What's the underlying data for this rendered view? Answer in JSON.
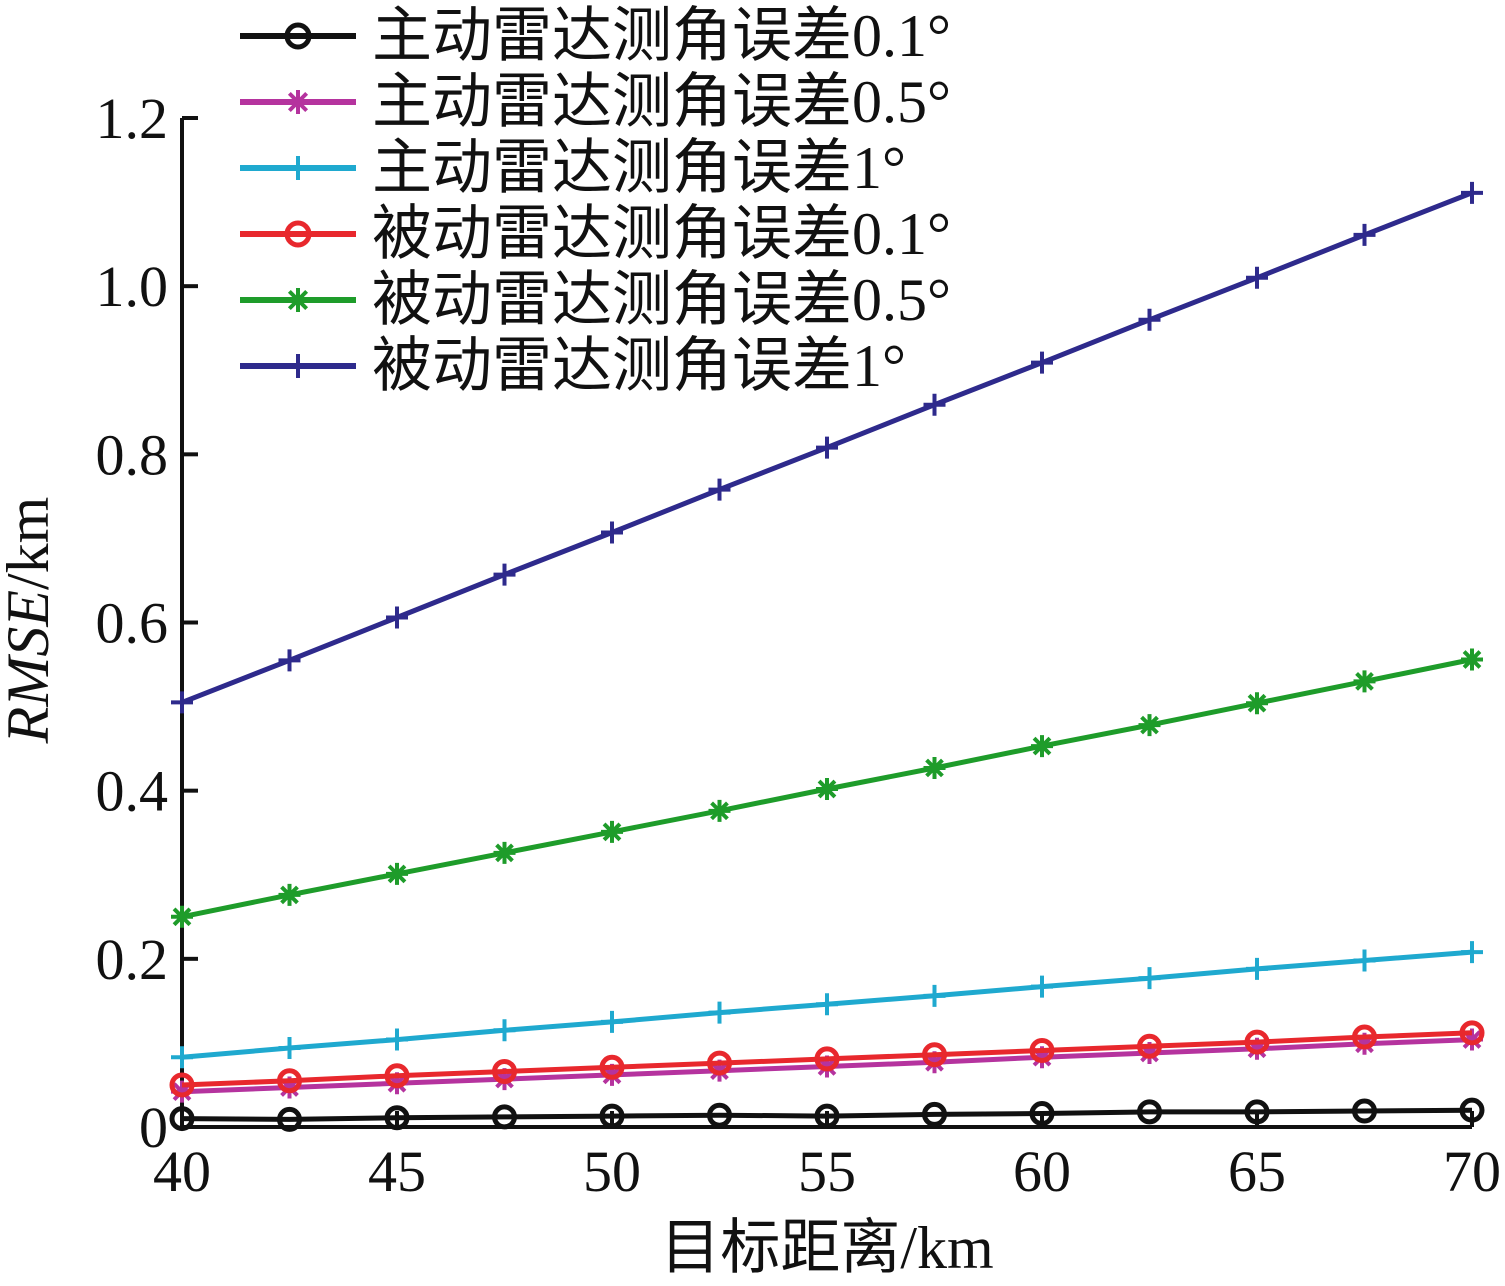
{
  "chart_data": {
    "type": "line",
    "title": "",
    "xlabel": "目标距离/km",
    "ylabel": "RMSE/km",
    "ylabel_parts": {
      "italic": "RMSE",
      "unit": "/km"
    },
    "xlim": [
      40,
      70
    ],
    "ylim": [
      0,
      1.2
    ],
    "xticks": [
      40,
      45,
      50,
      55,
      60,
      65,
      70
    ],
    "yticks": [
      0,
      0.2,
      0.4,
      0.6,
      0.8,
      1.0,
      1.2
    ],
    "xtick_labels": [
      "40",
      "45",
      "50",
      "55",
      "60",
      "65",
      "70"
    ],
    "ytick_labels": [
      "0",
      "0.2",
      "0.4",
      "0.6",
      "0.8",
      "1.0",
      "1.2"
    ],
    "grid": false,
    "legend_position": "top-left",
    "x": [
      40,
      42.5,
      45,
      47.5,
      50,
      52.5,
      55,
      57.5,
      60,
      62.5,
      65,
      67.5,
      70
    ],
    "series": [
      {
        "name": "主动雷达测角误差0.1°",
        "color": "#111111",
        "marker": "circle",
        "values": [
          0.01,
          0.009,
          0.011,
          0.012,
          0.013,
          0.014,
          0.013,
          0.015,
          0.016,
          0.018,
          0.018,
          0.019,
          0.02
        ]
      },
      {
        "name": "主动雷达测角误差0.5°",
        "color": "#b5339e",
        "marker": "asterisk",
        "values": [
          0.042,
          0.047,
          0.052,
          0.057,
          0.062,
          0.067,
          0.072,
          0.077,
          0.083,
          0.088,
          0.093,
          0.099,
          0.104
        ]
      },
      {
        "name": "主动雷达测角误差1°",
        "color": "#1fa9cf",
        "marker": "plus",
        "values": [
          0.083,
          0.094,
          0.104,
          0.115,
          0.125,
          0.136,
          0.146,
          0.156,
          0.167,
          0.177,
          0.188,
          0.198,
          0.208
        ]
      },
      {
        "name": "被动雷达测角误差0.1°",
        "color": "#e8282d",
        "marker": "circle",
        "values": [
          0.05,
          0.055,
          0.061,
          0.066,
          0.071,
          0.076,
          0.081,
          0.086,
          0.091,
          0.096,
          0.101,
          0.107,
          0.112
        ]
      },
      {
        "name": "被动雷达测角误差0.5°",
        "color": "#1e9c2a",
        "marker": "asterisk",
        "values": [
          0.25,
          0.276,
          0.301,
          0.326,
          0.351,
          0.376,
          0.402,
          0.427,
          0.453,
          0.478,
          0.504,
          0.53,
          0.556
        ]
      },
      {
        "name": "被动雷达测角误差1°",
        "color": "#2e2a8c",
        "marker": "plus",
        "values": [
          0.505,
          0.555,
          0.606,
          0.657,
          0.707,
          0.758,
          0.808,
          0.859,
          0.909,
          0.96,
          1.01,
          1.061,
          1.111
        ]
      }
    ]
  }
}
